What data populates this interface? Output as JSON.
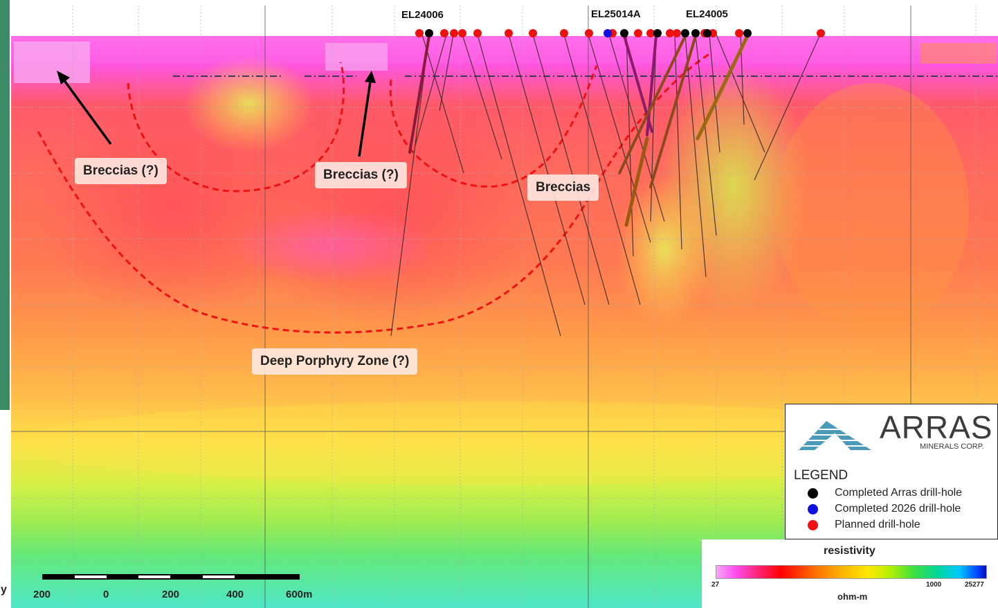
{
  "zone_labels": {
    "breccias_q1": "Breccias (?)",
    "breccias_q2": "Breccias (?)",
    "breccias": "Breccias",
    "deep_porphyry": "Deep Porphyry Zone (?)"
  },
  "drill_hole_labels": [
    "EL24006",
    "EL25014A",
    "EL24005"
  ],
  "logo": {
    "name": "ARRAS",
    "subtitle": "MINERALS CORP."
  },
  "legend": {
    "title": "LEGEND",
    "items": [
      {
        "label": "Completed Arras drill-hole",
        "color": "#000000"
      },
      {
        "label": "Completed 2026 drill-hole",
        "color": "#1010e0"
      },
      {
        "label": "Planned drill-hole",
        "color": "#ee1111"
      }
    ]
  },
  "resistivity": {
    "title": "resistivity",
    "min_label": "27",
    "mid_label": "1000",
    "max_label": "25277",
    "unit": "ohm-m"
  },
  "scale_bar": {
    "labels": [
      "200",
      "0",
      "200",
      "400",
      "600m"
    ]
  },
  "edge_letter": "y",
  "colors": {
    "magenta": "#ff5cf0",
    "pink": "#ff6a7a",
    "red_orange": "#ff5a3c",
    "orange": "#ff9a40",
    "yellow": "#ffe44a",
    "lime": "#c8f04a",
    "green": "#7ae85a",
    "cyan": "#55ecd0",
    "dashed_outline": "#ee1111"
  }
}
